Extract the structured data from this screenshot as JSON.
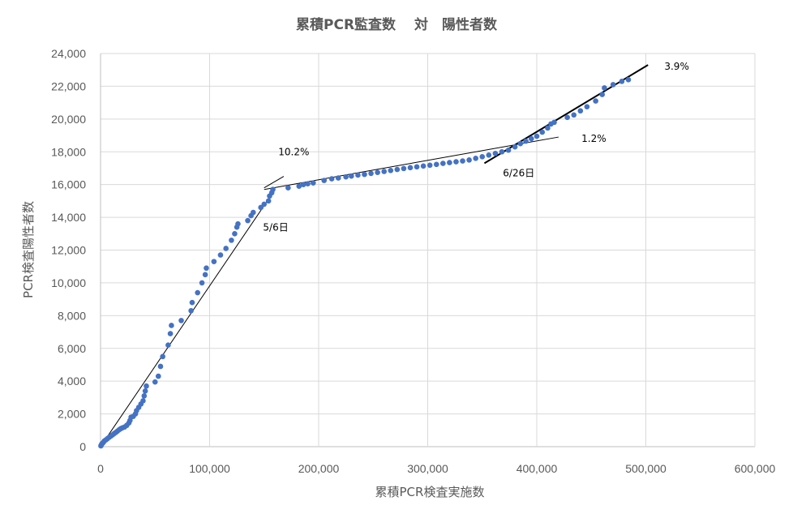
{
  "chart_data": {
    "type": "scatter",
    "title": "累積PCR監査数　 対　陽性者数",
    "xlabel": "累積PCR検査実施数",
    "ylabel": "PCR検査陽性者数",
    "xlim": [
      0,
      600000
    ],
    "ylim": [
      0,
      24000
    ],
    "x_ticks": [
      "0",
      "100,000",
      "200,000",
      "300,000",
      "400,000",
      "500,000",
      "600,000"
    ],
    "y_ticks": [
      "0",
      "2,000",
      "4,000",
      "6,000",
      "8,000",
      "10,000",
      "12,000",
      "14,000",
      "16,000",
      "18,000",
      "20,000",
      "22,000",
      "24,000"
    ],
    "grid": "horizontal",
    "marker_color": "#4472c4",
    "series": [
      {
        "points": [
          [
            300,
            50
          ],
          [
            800,
            120
          ],
          [
            1300,
            180
          ],
          [
            2000,
            220
          ],
          [
            2800,
            280
          ],
          [
            3500,
            350
          ],
          [
            5000,
            420
          ],
          [
            6500,
            500
          ],
          [
            8000,
            580
          ],
          [
            9500,
            650
          ],
          [
            11000,
            720
          ],
          [
            12500,
            800
          ],
          [
            14000,
            870
          ],
          [
            15500,
            950
          ],
          [
            17000,
            1030
          ],
          [
            18500,
            1100
          ],
          [
            20000,
            1150
          ],
          [
            22000,
            1200
          ],
          [
            24000,
            1300
          ],
          [
            26000,
            1450
          ],
          [
            27000,
            1600
          ],
          [
            28000,
            1800
          ],
          [
            30000,
            1850
          ],
          [
            32000,
            2000
          ],
          [
            33000,
            2200
          ],
          [
            35000,
            2400
          ],
          [
            37000,
            2600
          ],
          [
            39000,
            2800
          ],
          [
            40000,
            3100
          ],
          [
            41000,
            3400
          ],
          [
            42000,
            3700
          ],
          [
            50000,
            3950
          ],
          [
            53000,
            4300
          ],
          [
            55000,
            4900
          ],
          [
            57000,
            5500
          ],
          [
            62000,
            6200
          ],
          [
            64000,
            6900
          ],
          [
            65000,
            7400
          ],
          [
            74000,
            7700
          ],
          [
            83000,
            8300
          ],
          [
            84000,
            8800
          ],
          [
            89000,
            9400
          ],
          [
            93000,
            10000
          ],
          [
            96000,
            10500
          ],
          [
            97000,
            10900
          ],
          [
            104000,
            11300
          ],
          [
            110000,
            11700
          ],
          [
            115000,
            12100
          ],
          [
            120000,
            12600
          ],
          [
            123000,
            13000
          ],
          [
            125000,
            13400
          ],
          [
            126000,
            13600
          ],
          [
            135000,
            13800
          ],
          [
            138000,
            14100
          ],
          [
            140000,
            14300
          ],
          [
            147000,
            14600
          ],
          [
            150000,
            14800
          ],
          [
            154000,
            15000
          ],
          [
            155000,
            15300
          ],
          [
            157000,
            15500
          ],
          [
            158000,
            15700
          ],
          [
            172000,
            15800
          ],
          [
            182000,
            15900
          ],
          [
            186000,
            16000
          ],
          [
            190000,
            16050
          ],
          [
            195000,
            16100
          ],
          [
            205000,
            16250
          ],
          [
            212000,
            16350
          ],
          [
            218000,
            16400
          ],
          [
            225000,
            16470
          ],
          [
            230000,
            16520
          ],
          [
            236000,
            16580
          ],
          [
            242000,
            16620
          ],
          [
            248000,
            16680
          ],
          [
            254000,
            16740
          ],
          [
            260000,
            16800
          ],
          [
            266000,
            16860
          ],
          [
            272000,
            16920
          ],
          [
            278000,
            16980
          ],
          [
            284000,
            17030
          ],
          [
            290000,
            17080
          ],
          [
            296000,
            17130
          ],
          [
            302000,
            17180
          ],
          [
            308000,
            17230
          ],
          [
            314000,
            17290
          ],
          [
            320000,
            17340
          ],
          [
            326000,
            17390
          ],
          [
            332000,
            17440
          ],
          [
            338000,
            17500
          ],
          [
            344000,
            17600
          ],
          [
            350000,
            17700
          ],
          [
            356000,
            17800
          ],
          [
            362000,
            17900
          ],
          [
            368000,
            18000
          ],
          [
            374000,
            18100
          ],
          [
            380000,
            18300
          ],
          [
            385000,
            18500
          ],
          [
            390000,
            18650
          ],
          [
            395000,
            18800
          ],
          [
            400000,
            18950
          ],
          [
            405000,
            19200
          ],
          [
            410000,
            19450
          ],
          [
            413000,
            19700
          ],
          [
            416000,
            19800
          ],
          [
            428000,
            20100
          ],
          [
            434000,
            20250
          ],
          [
            440000,
            20500
          ],
          [
            446000,
            20750
          ],
          [
            454000,
            21100
          ],
          [
            460000,
            21500
          ],
          [
            462000,
            21900
          ],
          [
            470000,
            22100
          ],
          [
            478000,
            22300
          ],
          [
            484000,
            22400
          ]
        ]
      }
    ],
    "trend_lines": [
      {
        "from": [
          0,
          0
        ],
        "to": [
          160000,
          15700
        ],
        "stroke_width": 1
      },
      {
        "from": [
          150000,
          15800
        ],
        "to": [
          168000,
          16500
        ],
        "stroke_width": 1
      },
      {
        "from": [
          150000,
          15700
        ],
        "to": [
          420000,
          18900
        ],
        "stroke_width": 1
      },
      {
        "from": [
          352000,
          17300
        ],
        "to": [
          502000,
          23300
        ],
        "stroke_width": 2
      }
    ],
    "annotations": [
      {
        "text": "5/6日",
        "x": 149000,
        "y": 13200
      },
      {
        "text": "10.2%",
        "x": 163000,
        "y": 17800
      },
      {
        "text": "6/26日",
        "x": 369000,
        "y": 16500
      },
      {
        "text": "1.2%",
        "x": 441000,
        "y": 18600
      },
      {
        "text": "3.9%",
        "x": 517000,
        "y": 23000
      }
    ]
  }
}
